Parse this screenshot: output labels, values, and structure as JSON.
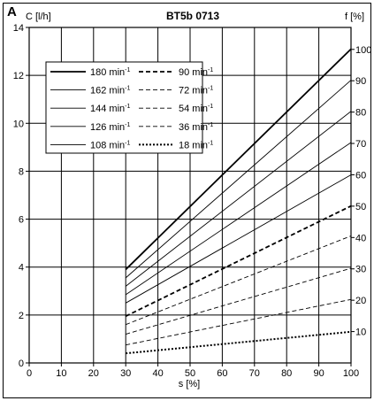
{
  "chart_data": {
    "type": "line",
    "panel_label": "A",
    "title": "BT5b 0713",
    "xlabel": "s [%]",
    "ylabel_left": "C [l/h]",
    "ylabel_right": "f [%]",
    "xlim": [
      0,
      100
    ],
    "ylim": [
      0,
      14
    ],
    "y2lim": [
      0,
      107
    ],
    "xticks": [
      "0",
      "10",
      "20",
      "30",
      "40",
      "50",
      "60",
      "70",
      "80",
      "90",
      "100"
    ],
    "yticks": [
      "0",
      "2",
      "4",
      "6",
      "8",
      "10",
      "12",
      "14"
    ],
    "y2ticks": [
      "10",
      "20",
      "30",
      "40",
      "50",
      "60",
      "70",
      "80",
      "90",
      "100"
    ],
    "grid": true,
    "legend_position": "top-left",
    "x": [
      30,
      100
    ],
    "series": [
      {
        "name": "180 min-1",
        "values": [
          3.9,
          13.1
        ],
        "style": "solid",
        "width": 1.8
      },
      {
        "name": "162 min-1",
        "values": [
          3.55,
          11.8
        ],
        "style": "solid",
        "width": 0.9
      },
      {
        "name": "144 min-1",
        "values": [
          3.2,
          10.5
        ],
        "style": "solid",
        "width": 0.9
      },
      {
        "name": "126 min-1",
        "values": [
          2.85,
          9.2
        ],
        "style": "solid",
        "width": 0.9
      },
      {
        "name": "108 min-1",
        "values": [
          2.5,
          7.85
        ],
        "style": "solid",
        "width": 0.9
      },
      {
        "name": "90 min-1",
        "values": [
          1.95,
          6.55
        ],
        "style": "dashed",
        "width": 1.8
      },
      {
        "name": "72 min-1",
        "values": [
          1.6,
          5.3
        ],
        "style": "dashed",
        "width": 0.9
      },
      {
        "name": "54 min-1",
        "values": [
          1.2,
          3.95
        ],
        "style": "dashed",
        "width": 0.9
      },
      {
        "name": "36 min-1",
        "values": [
          0.75,
          2.65
        ],
        "style": "dashed",
        "width": 0.9
      },
      {
        "name": "18 min-1",
        "values": [
          0.4,
          1.3
        ],
        "style": "dotted",
        "width": 2.0
      }
    ]
  }
}
